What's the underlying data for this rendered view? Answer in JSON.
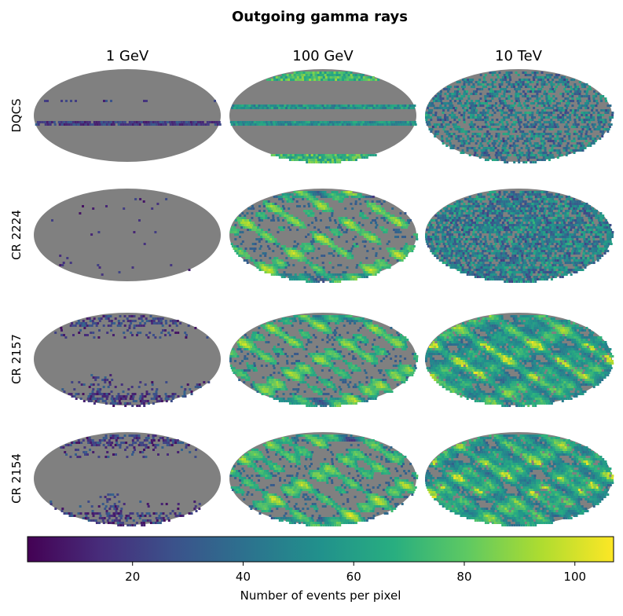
{
  "chart_data": {
    "type": "heatmap",
    "projection": "Mollweide all-sky map",
    "title": "Outgoing gamma rays",
    "columns": [
      "1 GeV",
      "100 GeV",
      "10 TeV"
    ],
    "rows": [
      "DQCS",
      "CR 2224",
      "CR 2157",
      "CR 2154"
    ],
    "colorbar": {
      "label": "Number of events per pixel",
      "range": [
        1,
        107
      ],
      "ticks": [
        20,
        40,
        60,
        80,
        100
      ],
      "colormap": "viridis"
    },
    "empty_pixel_color": "#808080",
    "panels": [
      {
        "row": "DQCS",
        "column": "1 GeV",
        "pattern": "equator_band",
        "coverage": 0.05,
        "mean": 8
      },
      {
        "row": "DQCS",
        "column": "100 GeV",
        "pattern": "polar_and_bands",
        "coverage": 0.25,
        "mean": 60
      },
      {
        "row": "DQCS",
        "column": "10 TeV",
        "pattern": "uniform_speckle",
        "coverage": 0.55,
        "mean": 45
      },
      {
        "row": "CR 2224",
        "column": "1 GeV",
        "pattern": "sparse_clusters",
        "coverage": 0.03,
        "mean": 5
      },
      {
        "row": "CR 2224",
        "column": "100 GeV",
        "pattern": "large_blobs",
        "coverage": 0.45,
        "mean": 45
      },
      {
        "row": "CR 2224",
        "column": "10 TeV",
        "pattern": "uniform_speckle",
        "coverage": 0.8,
        "mean": 55
      },
      {
        "row": "CR 2157",
        "column": "1 GeV",
        "pattern": "polar_streaks",
        "coverage": 0.15,
        "mean": 10
      },
      {
        "row": "CR 2157",
        "column": "100 GeV",
        "pattern": "large_blobs",
        "coverage": 0.6,
        "mean": 55
      },
      {
        "row": "CR 2157",
        "column": "10 TeV",
        "pattern": "dense_with_hotspots",
        "coverage": 0.9,
        "mean": 65
      },
      {
        "row": "CR 2154",
        "column": "1 GeV",
        "pattern": "polar_streaks",
        "coverage": 0.2,
        "mean": 10
      },
      {
        "row": "CR 2154",
        "column": "100 GeV",
        "pattern": "large_blobs",
        "coverage": 0.65,
        "mean": 60
      },
      {
        "row": "CR 2154",
        "column": "10 TeV",
        "pattern": "dense_with_hotspots",
        "coverage": 0.9,
        "mean": 65
      }
    ]
  }
}
